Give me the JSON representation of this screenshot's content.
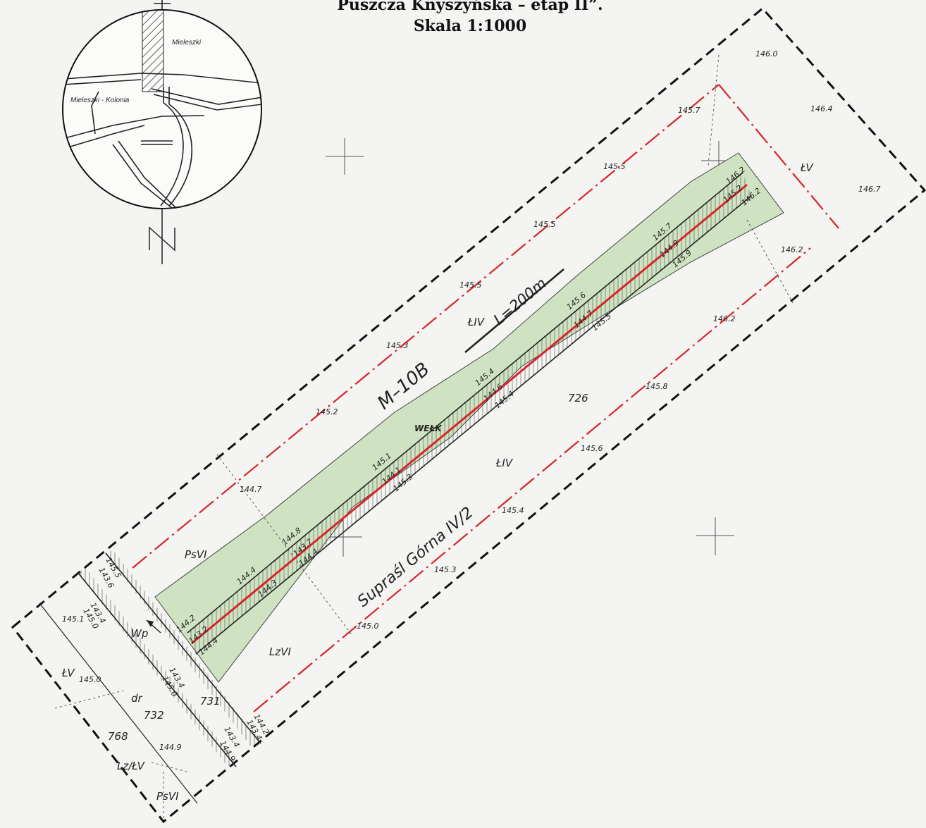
{
  "header": {
    "title": "Puszcza Knyszyńska – etap II”.",
    "scale": "Skala 1:1000"
  },
  "inset_map": {
    "labels": [
      "Mieleszki",
      "Mieleszki - Kolonia"
    ],
    "north_symbol": "N"
  },
  "drawing": {
    "ditch_code": "M–10B",
    "length_label": "L=200m",
    "precinct_label": "Supraśl Górna IV/2",
    "parcels": [
      "726",
      "731",
      "732",
      "768"
    ],
    "culvert_label": "Wp",
    "pipe_label": "WEŁK",
    "land_classes": {
      "liv_top": "ŁIV",
      "liv_mid": "ŁIV",
      "lv_right": "ŁV",
      "lv_left": "ŁV",
      "psvi": "PsVI",
      "lzvi": "LzVI",
      "dr": "dr",
      "lzlv": "Lz/ŁV",
      "psvi_b": "PsVI"
    },
    "spot_heights": {
      "h1": "146.0",
      "h2": "146.4",
      "h3": "145.7",
      "h4": "146.7",
      "h5": "145.5",
      "h6": "145.5",
      "h7": "146.2",
      "h8": "145.5",
      "h9": "146.2",
      "h10": "145.3",
      "h11": "145.8",
      "h12": "145.2",
      "h13": "145.6",
      "h14": "144.7",
      "h15": "145.4",
      "h16": "145.3",
      "h17": "145.0",
      "h18": "145.1",
      "h19": "145.0",
      "h20": "144.9"
    },
    "ditch_levels": {
      "d1": "146.2",
      "d2": "145.2",
      "d3": "146.2",
      "d4": "145.7",
      "d5": "144.9",
      "d6": "145.9",
      "d7": "145.6",
      "d8": "144.7",
      "d9": "145.5",
      "d10": "145.4",
      "d11": "144.6",
      "d12": "145.4",
      "d13": "145.1",
      "d14": "144.1",
      "d15": "145.3",
      "d16": "144.8",
      "d17": "143.7",
      "d18": "144.4",
      "d19": "144.4",
      "d20": "144.3",
      "d21": "144.2",
      "d22": "143.2",
      "d23": "144.4",
      "c1": "145.5",
      "c2": "143.6",
      "c3": "143.4",
      "c4": "145.0",
      "c5": "143.4",
      "c6": "145.0",
      "c7": "144.2",
      "c8": "143.4",
      "c9": "143.4",
      "c10": "144.9"
    }
  },
  "colors": {
    "ditch_red": "#d8242a",
    "boundary": "#111111",
    "vegetation": "#cfe3c2",
    "paper": "#f4f4f2"
  }
}
